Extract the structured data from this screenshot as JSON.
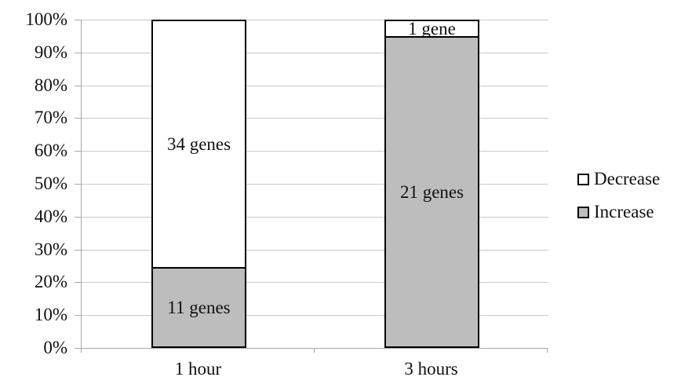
{
  "chart_data": {
    "type": "bar",
    "subtype": "stacked-100-percent",
    "title": "",
    "xlabel": "",
    "ylabel": "",
    "categories": [
      "1 hour",
      "3 hours"
    ],
    "series": [
      {
        "name": "Increase",
        "color": "#bdbdbd",
        "values": [
          11,
          21
        ],
        "labels": [
          "11 genes",
          "21 genes"
        ]
      },
      {
        "name": "Decrease",
        "color": "#ffffff",
        "values": [
          34,
          1
        ],
        "labels": [
          "34 genes",
          "1 gene"
        ]
      }
    ],
    "yticks": [
      "0%",
      "10%",
      "20%",
      "30%",
      "40%",
      "50%",
      "60%",
      "70%",
      "80%",
      "90%",
      "100%"
    ],
    "ylim": [
      0,
      100
    ],
    "grid": true,
    "legend_position": "right"
  },
  "legend": {
    "items": [
      {
        "label": "Decrease",
        "swatch_color": "#ffffff"
      },
      {
        "label": "Increase",
        "swatch_color": "#bdbdbd"
      }
    ]
  },
  "colors": {
    "background": "#ffffff",
    "increase_fill": "#bdbdbd",
    "decrease_fill": "#ffffff",
    "bar_border": "#000000",
    "gridline": "#c9c9c9",
    "axis": "#a9a9a9",
    "text": "#111111"
  }
}
